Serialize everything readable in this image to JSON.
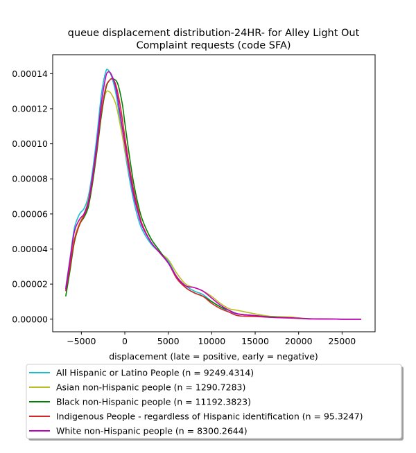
{
  "chart_data": {
    "type": "line",
    "title_line1": "queue displacement distribution-24HR-  for Alley Light Out",
    "title_line2": "Complaint  requests (code SFA)",
    "xlabel": "displacement (late = positive, early = negative)",
    "ylabel": "",
    "xlim": [
      -8300,
      28800
    ],
    "ylim": [
      -7.2e-06,
      0.0001508
    ],
    "x_ticks": [
      -5000,
      0,
      5000,
      10000,
      15000,
      20000,
      25000
    ],
    "x_tick_labels": [
      "−5000",
      "0",
      "5000",
      "10000",
      "15000",
      "20000",
      "25000"
    ],
    "y_ticks": [
      0,
      2e-05,
      4e-05,
      6e-05,
      8e-05,
      0.0001,
      0.00012,
      0.00014
    ],
    "y_tick_labels": [
      "0.00000",
      "0.00002",
      "0.00004",
      "0.00006",
      "0.00008",
      "0.00010",
      "0.00012",
      "0.00014"
    ],
    "grid": false,
    "legend_position": "below",
    "series": [
      {
        "name": "All Hispanic or Latino People (n = 9249.4314)",
        "color": "#17becf",
        "points": [
          [
            -6800,
            1.8e-05
          ],
          [
            -6300,
            3.5e-05
          ],
          [
            -5800,
            5.2e-05
          ],
          [
            -5200,
            6e-05
          ],
          [
            -4700,
            6.3e-05
          ],
          [
            -4200,
            7e-05
          ],
          [
            -3700,
            8.5e-05
          ],
          [
            -3200,
            0.000105
          ],
          [
            -2700,
            0.000128
          ],
          [
            -2200,
            0.000141
          ],
          [
            -1900,
            0.000142
          ],
          [
            -1500,
            0.000138
          ],
          [
            -1000,
            0.000128
          ],
          [
            -500,
            0.000112
          ],
          [
            0,
            9.6e-05
          ],
          [
            500,
            8.1e-05
          ],
          [
            1000,
            6.8e-05
          ],
          [
            1500,
            5.8e-05
          ],
          [
            2000,
            5.1e-05
          ],
          [
            3000,
            4.3e-05
          ],
          [
            4000,
            3.8e-05
          ],
          [
            5000,
            3.3e-05
          ],
          [
            6000,
            2.4e-05
          ],
          [
            7000,
            1.9e-05
          ],
          [
            8000,
            1.6e-05
          ],
          [
            9000,
            1.4e-05
          ],
          [
            10000,
            1e-05
          ],
          [
            11000,
            7e-06
          ],
          [
            12000,
            4e-06
          ],
          [
            13000,
            3e-06
          ],
          [
            15000,
            2e-06
          ],
          [
            17000,
            1.5e-06
          ],
          [
            19000,
            1e-06
          ],
          [
            21000,
            3e-07
          ],
          [
            23000,
            1e-07
          ],
          [
            25000,
            0.0
          ],
          [
            27200,
            0.0
          ]
        ]
      },
      {
        "name": "Asian non-Hispanic people (n = 1290.7283)",
        "color": "#bcbd22",
        "points": [
          [
            -6800,
            1.7e-05
          ],
          [
            -6300,
            3.2e-05
          ],
          [
            -5800,
            4.6e-05
          ],
          [
            -5200,
            5.5e-05
          ],
          [
            -4700,
            6e-05
          ],
          [
            -4200,
            6.8e-05
          ],
          [
            -3700,
            8.2e-05
          ],
          [
            -3200,
            0.0001
          ],
          [
            -2700,
            0.00012
          ],
          [
            -2200,
            0.000129
          ],
          [
            -1900,
            0.00013
          ],
          [
            -1500,
            0.000128
          ],
          [
            -1000,
            0.000122
          ],
          [
            -500,
            0.00011
          ],
          [
            0,
            9.7e-05
          ],
          [
            500,
            8.4e-05
          ],
          [
            1000,
            7.2e-05
          ],
          [
            1500,
            6.2e-05
          ],
          [
            2000,
            5.4e-05
          ],
          [
            3000,
            4.4e-05
          ],
          [
            4000,
            3.8e-05
          ],
          [
            5000,
            3.4e-05
          ],
          [
            6000,
            2.6e-05
          ],
          [
            7000,
            2e-05
          ],
          [
            8000,
            1.8e-05
          ],
          [
            9000,
            1.6e-05
          ],
          [
            10000,
            1.3e-05
          ],
          [
            11000,
            9e-06
          ],
          [
            12000,
            6e-06
          ],
          [
            13000,
            5e-06
          ],
          [
            15000,
            3e-06
          ],
          [
            17000,
            1.5e-06
          ],
          [
            19000,
            1.2e-06
          ],
          [
            21000,
            3e-07
          ],
          [
            23000,
            1e-07
          ],
          [
            25000,
            0.0
          ],
          [
            27200,
            0.0
          ]
        ]
      },
      {
        "name": "Black non-Hispanic people (n = 11192.3823)",
        "color": "#008000",
        "points": [
          [
            -6800,
            1.3e-05
          ],
          [
            -6300,
            2.8e-05
          ],
          [
            -5800,
            4.4e-05
          ],
          [
            -5200,
            5.4e-05
          ],
          [
            -4700,
            5.8e-05
          ],
          [
            -4200,
            6.4e-05
          ],
          [
            -3700,
            7.8e-05
          ],
          [
            -3200,
            9.6e-05
          ],
          [
            -2700,
            0.000116
          ],
          [
            -2200,
            0.000131
          ],
          [
            -1800,
            0.000136
          ],
          [
            -1300,
            0.000137
          ],
          [
            -800,
            0.000134
          ],
          [
            -300,
            0.000123
          ],
          [
            0,
            0.000112
          ],
          [
            500,
            9.4e-05
          ],
          [
            1000,
            7.8e-05
          ],
          [
            1500,
            6.6e-05
          ],
          [
            2000,
            5.7e-05
          ],
          [
            3000,
            4.6e-05
          ],
          [
            4000,
            3.9e-05
          ],
          [
            5000,
            3.2e-05
          ],
          [
            6000,
            2.4e-05
          ],
          [
            7000,
            1.8e-05
          ],
          [
            8000,
            1.5e-05
          ],
          [
            9000,
            1.3e-05
          ],
          [
            10000,
            1e-05
          ],
          [
            11000,
            7e-06
          ],
          [
            12000,
            5e-06
          ],
          [
            13000,
            3e-06
          ],
          [
            15000,
            2e-06
          ],
          [
            17000,
            1.2e-06
          ],
          [
            19000,
            8e-07
          ],
          [
            21000,
            3e-07
          ],
          [
            23000,
            1e-07
          ],
          [
            25000,
            0.0
          ],
          [
            27200,
            0.0
          ]
        ]
      },
      {
        "name": "Indigenous People - regardless of Hispanic identification (n = 95.3247)",
        "color": "#d62728",
        "points": [
          [
            -6800,
            1.6e-05
          ],
          [
            -6300,
            3e-05
          ],
          [
            -5800,
            4.5e-05
          ],
          [
            -5200,
            5.4e-05
          ],
          [
            -4700,
            5.9e-05
          ],
          [
            -4200,
            6.6e-05
          ],
          [
            -3700,
            8e-05
          ],
          [
            -3200,
            9.8e-05
          ],
          [
            -2700,
            0.000118
          ],
          [
            -2200,
            0.000132
          ],
          [
            -1800,
            0.000136
          ],
          [
            -1400,
            0.000137
          ],
          [
            -1000,
            0.000133
          ],
          [
            -500,
            0.000121
          ],
          [
            0,
            0.000104
          ],
          [
            500,
            8.8e-05
          ],
          [
            1000,
            7.4e-05
          ],
          [
            1500,
            6.3e-05
          ],
          [
            2000,
            5.4e-05
          ],
          [
            3000,
            4.4e-05
          ],
          [
            4000,
            3.8e-05
          ],
          [
            5000,
            3.2e-05
          ],
          [
            6000,
            2.3e-05
          ],
          [
            7000,
            1.8e-05
          ],
          [
            8000,
            1.5e-05
          ],
          [
            9000,
            1.3e-05
          ],
          [
            10000,
            9e-06
          ],
          [
            11000,
            6e-06
          ],
          [
            12000,
            4e-06
          ],
          [
            13000,
            2e-06
          ],
          [
            15000,
            1.5e-06
          ],
          [
            17000,
            1e-06
          ],
          [
            19000,
            6e-07
          ],
          [
            21000,
            2e-07
          ],
          [
            23000,
            1e-07
          ],
          [
            25000,
            0.0
          ],
          [
            27200,
            0.0
          ]
        ]
      },
      {
        "name": "White non-Hispanic people (n = 8300.2644)",
        "color": "#c000c0",
        "points": [
          [
            -6800,
            1.7e-05
          ],
          [
            -6300,
            3.4e-05
          ],
          [
            -5800,
            5e-05
          ],
          [
            -5200,
            5.7e-05
          ],
          [
            -4700,
            6e-05
          ],
          [
            -4200,
            6.7e-05
          ],
          [
            -3700,
            8.2e-05
          ],
          [
            -3200,
            0.000101
          ],
          [
            -2700,
            0.000123
          ],
          [
            -2200,
            0.000138
          ],
          [
            -1900,
            0.000141
          ],
          [
            -1500,
            0.000139
          ],
          [
            -1000,
            0.000131
          ],
          [
            -500,
            0.000116
          ],
          [
            0,
            0.0001
          ],
          [
            500,
            8.5e-05
          ],
          [
            1000,
            7.1e-05
          ],
          [
            1500,
            6.1e-05
          ],
          [
            2000,
            5.3e-05
          ],
          [
            3000,
            4.4e-05
          ],
          [
            4000,
            3.8e-05
          ],
          [
            5000,
            3.2e-05
          ],
          [
            6000,
            2.4e-05
          ],
          [
            7000,
            1.9e-05
          ],
          [
            8000,
            1.8e-05
          ],
          [
            9000,
            1.6e-05
          ],
          [
            10000,
            1.2e-05
          ],
          [
            11000,
            8e-06
          ],
          [
            12000,
            5e-06
          ],
          [
            13000,
            3e-06
          ],
          [
            15000,
            2e-06
          ],
          [
            17000,
            1e-06
          ],
          [
            19000,
            8e-07
          ],
          [
            21000,
            2e-07
          ],
          [
            23000,
            1e-07
          ],
          [
            25000,
            0.0
          ],
          [
            27200,
            0.0
          ]
        ]
      }
    ]
  }
}
